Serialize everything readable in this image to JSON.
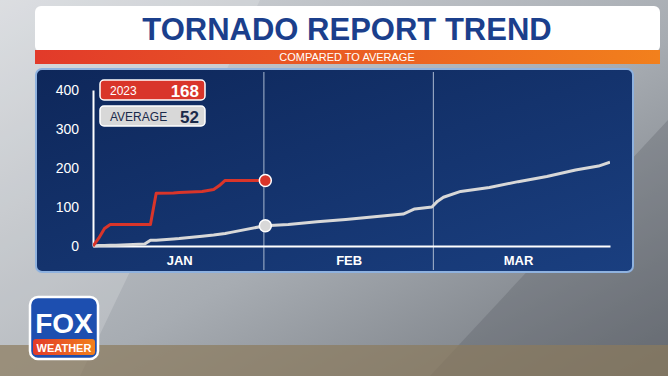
{
  "chart_data": {
    "type": "line",
    "title": "TORNADO REPORT TREND",
    "subtitle": "COMPARED TO AVERAGE",
    "x": [
      1,
      2,
      3,
      4,
      5,
      10,
      11,
      12,
      15,
      16,
      20,
      22,
      23,
      24,
      25,
      31,
      35,
      40,
      45,
      50,
      55,
      57,
      60,
      61,
      62,
      65,
      70,
      75,
      80,
      85,
      89,
      91
    ],
    "series": [
      {
        "name": "2023",
        "color": "#d9352a",
        "values": [
          0,
          20,
          45,
          55,
          55,
          55,
          55,
          135,
          136,
          137,
          140,
          145,
          155,
          168,
          168,
          168,
          null,
          null,
          null,
          null,
          null,
          null,
          null,
          null,
          null,
          null,
          null,
          null,
          null,
          null,
          null,
          null
        ]
      },
      {
        "name": "AVERAGE",
        "color": "#d8d8d8",
        "values": [
          0,
          1,
          1,
          2,
          2,
          5,
          15,
          15,
          18,
          19,
          25,
          28,
          30,
          32,
          35,
          52,
          55,
          62,
          68,
          75,
          82,
          95,
          100,
          115,
          125,
          140,
          150,
          165,
          178,
          195,
          205,
          215
        ]
      }
    ],
    "xlim": [
      1,
      91
    ],
    "xticks": [
      {
        "value": 16,
        "label": "JAN"
      },
      {
        "value": 45.5,
        "label": "FEB"
      },
      {
        "value": 75,
        "label": "MAR"
      }
    ],
    "ylim": [
      0,
      400
    ],
    "yticks": [
      0,
      100,
      200,
      300,
      400
    ],
    "legend": "top-left"
  },
  "logo": {
    "text": "FOX",
    "subtext": "WEATHER"
  }
}
